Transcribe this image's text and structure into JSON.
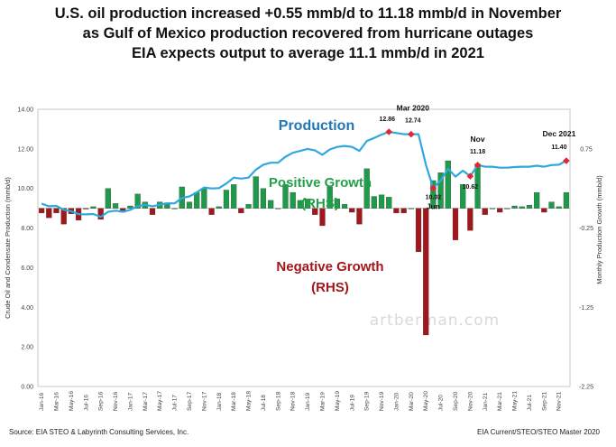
{
  "title": {
    "line1": "U.S. oil production increased +0.55 mmb/d to 11.18 mmb/d in November",
    "line2": "as Gulf of Mexico production recovered from hurricane outages",
    "line3": "EIA expects output to average 11.1 mmb/d in 2021"
  },
  "footer": {
    "source": "Source:  EIA STEO &  Labyrinth Consulting  Services, Inc.",
    "file": "EIA Current/STEO/STEO Master 2020"
  },
  "watermark": "artberman.com",
  "colors": {
    "production": "#2EA8DE",
    "positive": "#1E9B4A",
    "negative": "#A3161B",
    "marker": "#E0282E",
    "production_label": "#1F77B4",
    "positive_label": "#22A04A",
    "negative_label": "#A3161B"
  },
  "chart_data": {
    "type": "line+bar",
    "left_axis": {
      "label": "Crude  Oil and Condensate Production   (mmb/d)",
      "ylim": [
        0,
        14
      ],
      "ticks": [
        "0.00",
        "2.00",
        "4.00",
        "6.00",
        "8.00",
        "10.00",
        "12.00",
        "14.00"
      ]
    },
    "right_axis": {
      "label": "Monthly Production  Growth  (mmb/d)",
      "ylim": [
        -2.25,
        1.25
      ],
      "ticks": [
        "-2.25",
        "-1.25",
        "-0.25",
        "0.75"
      ]
    },
    "x_tick_labels": [
      "Jan-16",
      "Mar-16",
      "May-16",
      "Jul-16",
      "Sep-16",
      "Nov-16",
      "Jan-17",
      "Mar-17",
      "May-17",
      "Jul-17",
      "Sep-17",
      "Nov-17",
      "Jan-18",
      "Mar-18",
      "May-18",
      "Jul-18",
      "Sep-18",
      "Nov-18",
      "Jan-19",
      "Mar-19",
      "May-19",
      "Jul-19",
      "Sep-19",
      "Nov-19",
      "Jan-20",
      "Mar-20",
      "May-20",
      "Jul-20",
      "Sep-20",
      "Nov-20",
      "Jan-21",
      "Mar-21",
      "May-21",
      "Jul-21",
      "Sep-21",
      "Nov-21"
    ],
    "series": [
      {
        "name": "Production",
        "axis": "left",
        "values": [
          9.23,
          9.1,
          9.12,
          8.92,
          8.85,
          8.7,
          8.69,
          8.71,
          8.57,
          8.82,
          8.88,
          8.83,
          8.92,
          9.1,
          9.18,
          9.1,
          9.18,
          9.25,
          9.25,
          9.52,
          9.6,
          9.8,
          10.05,
          10.0,
          10.02,
          10.25,
          10.55,
          10.5,
          10.55,
          10.95,
          11.2,
          11.3,
          11.3,
          11.6,
          11.8,
          11.9,
          12.0,
          11.92,
          11.7,
          11.97,
          12.1,
          12.15,
          12.1,
          11.9,
          12.4,
          12.55,
          12.72,
          12.86,
          12.8,
          12.74,
          12.74,
          12.74,
          11.2,
          10.02,
          10.4,
          11.0,
          10.6,
          10.9,
          10.62,
          11.18,
          11.1,
          11.1,
          11.05,
          11.05,
          11.08,
          11.1,
          11.1,
          11.15,
          11.1,
          11.18,
          11.2,
          11.4
        ]
      },
      {
        "name": "Monthly Production Growth",
        "axis": "right",
        "values": [
          -0.06,
          -0.12,
          -0.06,
          -0.2,
          -0.07,
          -0.15,
          -0.01,
          0.02,
          -0.14,
          0.25,
          0.06,
          -0.05,
          0.03,
          0.18,
          0.08,
          -0.08,
          0.08,
          0.07,
          0.0,
          0.27,
          0.08,
          0.2,
          0.25,
          -0.08,
          0.02,
          0.23,
          0.3,
          -0.06,
          0.05,
          0.4,
          0.25,
          0.1,
          0.0,
          0.3,
          0.2,
          0.1,
          0.12,
          -0.08,
          -0.22,
          0.27,
          0.12,
          0.05,
          -0.05,
          -0.2,
          0.5,
          0.15,
          0.17,
          0.14,
          -0.06,
          -0.06,
          0.0,
          -0.55,
          -1.6,
          0.35,
          0.45,
          0.6,
          -0.4,
          0.3,
          -0.28,
          0.56,
          -0.08,
          0.0,
          -0.05,
          0.0,
          0.03,
          0.02,
          0.04,
          0.2,
          -0.05,
          0.08,
          0.02,
          0.2
        ]
      }
    ],
    "annotations": [
      {
        "text": "12.86",
        "series": "Production",
        "index": 47
      },
      {
        "text": "Mar 2020",
        "series": "Production",
        "index": 50
      },
      {
        "text": "12.74",
        "series": "Production",
        "index": 50
      },
      {
        "text": "10.02",
        "series": "Production",
        "index": 53
      },
      {
        "text": "Jun",
        "series": "Production",
        "index": 53
      },
      {
        "text": "10.62",
        "series": "Production",
        "index": 58
      },
      {
        "text": "Nov",
        "series": "Production",
        "index": 59
      },
      {
        "text": "11.18",
        "series": "Production",
        "index": 59
      },
      {
        "text": "Dec 2021",
        "series": "Production",
        "index": 71
      },
      {
        "text": "11.40",
        "series": "Production",
        "index": 71
      }
    ],
    "labels": {
      "production": "Production",
      "positive_growth_1": "Positive Growth",
      "positive_growth_2": "(RHS)",
      "negative_growth_1": "Negative Growth",
      "negative_growth_2": "(RHS)"
    }
  }
}
